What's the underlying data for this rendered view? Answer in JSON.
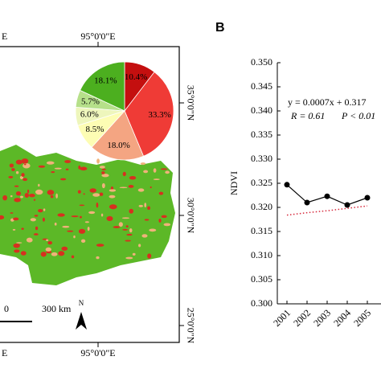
{
  "panel_label": "B",
  "map": {
    "top_left_cut": "E",
    "lon_label_top": "95°0'0\"E",
    "lon_label_bottom": "95°0'0\"E",
    "bottom_left_cut": "E",
    "lat_labels": [
      "35°0'0\"N",
      "30°0'0\"N",
      "25°0'0\"N"
    ],
    "scale_labels": [
      "0",
      "300 km"
    ],
    "north": "N"
  },
  "chart_data": [
    {
      "type": "pie",
      "values": [
        10.4,
        33.3,
        18.0,
        8.5,
        6.0,
        5.7,
        18.1
      ],
      "value_labels": [
        "10.4%",
        "33.3%",
        "18.0%",
        "8.5%",
        "6.0%",
        "5.7%",
        "18.1%"
      ],
      "colors": [
        "#c40f0f",
        "#ef3b36",
        "#f4a582",
        "#fdfdb4",
        "#eef6bc",
        "#b6e08a",
        "#4caf1f"
      ]
    },
    {
      "type": "line",
      "ylabel": "NDVI",
      "categories": [
        "2001",
        "2002",
        "2003",
        "2004",
        "2005"
      ],
      "series": [
        {
          "color": "#000000",
          "values": [
            0.3247,
            0.321,
            0.3223,
            0.3205,
            0.322
          ]
        }
      ],
      "trend": {
        "color": "#d6273a",
        "values": [
          0.3184,
          0.3189,
          0.3193,
          0.3198,
          0.3203
        ]
      },
      "annotations": [
        "y = 0.0007x + 0.317",
        "R = 0.61",
        "P < 0.01"
      ],
      "ylim": [
        0.3,
        0.35
      ],
      "yticks": [
        {
          "value": 0.3,
          "label": "0.300"
        },
        {
          "value": 0.305,
          "label": "0.305"
        },
        {
          "value": 0.31,
          "label": "0.310"
        },
        {
          "value": 0.315,
          "label": "0.315"
        },
        {
          "value": 0.32,
          "label": "0.320"
        },
        {
          "value": 0.325,
          "label": "0.325"
        },
        {
          "value": 0.33,
          "label": "0.330"
        },
        {
          "value": 0.335,
          "label": "0.335"
        },
        {
          "value": 0.34,
          "label": "0.340"
        },
        {
          "value": 0.345,
          "label": "0.345"
        },
        {
          "value": 0.35,
          "label": "0.350"
        }
      ]
    }
  ]
}
